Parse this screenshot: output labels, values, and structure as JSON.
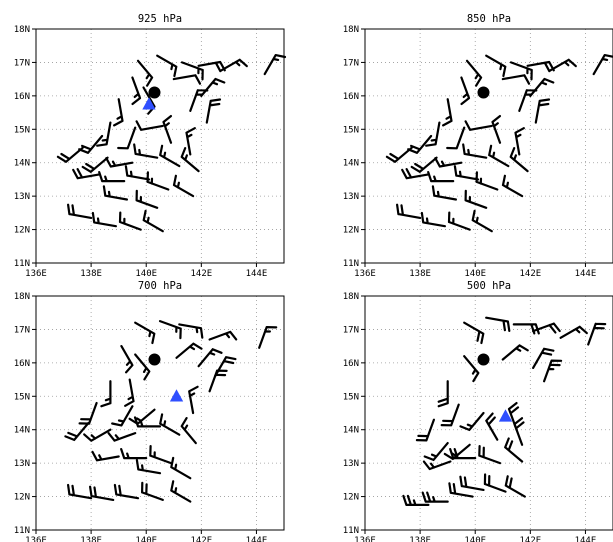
{
  "figure": {
    "panels": [
      {
        "title": "925 hPa",
        "center": {
          "lon": 140.3,
          "lat": 16.1
        },
        "triangle": {
          "lon": 140.1,
          "lat": 15.75
        },
        "barbs": [
          {
            "lon": 139.7,
            "lat": 17.05,
            "dir": 140,
            "spd": 15
          },
          {
            "lon": 140.4,
            "lat": 17.2,
            "dir": 120,
            "spd": 15
          },
          {
            "lon": 141.3,
            "lat": 17.0,
            "dir": 110,
            "spd": 15
          },
          {
            "lon": 141.9,
            "lat": 16.9,
            "dir": 80,
            "spd": 20
          },
          {
            "lon": 142.7,
            "lat": 16.75,
            "dir": 60,
            "spd": 15
          },
          {
            "lon": 144.3,
            "lat": 16.65,
            "dir": 30,
            "spd": 15
          },
          {
            "lon": 139.5,
            "lat": 16.55,
            "dir": 160,
            "spd": 15
          },
          {
            "lon": 141.0,
            "lat": 16.5,
            "dir": 80,
            "spd": 10
          },
          {
            "lon": 142.0,
            "lat": 16.0,
            "dir": 40,
            "spd": 15
          },
          {
            "lon": 139.0,
            "lat": 15.9,
            "dir": 170,
            "spd": 15
          },
          {
            "lon": 139.9,
            "lat": 16.25,
            "dir": 150,
            "spd": 10
          },
          {
            "lon": 141.6,
            "lat": 15.55,
            "dir": 20,
            "spd": 15
          },
          {
            "lon": 142.2,
            "lat": 15.2,
            "dir": 10,
            "spd": 20
          },
          {
            "lon": 138.7,
            "lat": 15.2,
            "dir": 190,
            "spd": 15
          },
          {
            "lon": 139.6,
            "lat": 15.05,
            "dir": 200,
            "spd": 10
          },
          {
            "lon": 140.6,
            "lat": 15.1,
            "dir": 260,
            "spd": 10
          },
          {
            "lon": 140.9,
            "lat": 14.6,
            "dir": 340,
            "spd": 15
          },
          {
            "lon": 141.6,
            "lat": 14.25,
            "dir": 350,
            "spd": 15
          },
          {
            "lon": 138.4,
            "lat": 14.8,
            "dir": 220,
            "spd": 20
          },
          {
            "lon": 137.7,
            "lat": 14.45,
            "dir": 230,
            "spd": 20
          },
          {
            "lon": 138.6,
            "lat": 14.15,
            "dir": 230,
            "spd": 20
          },
          {
            "lon": 139.5,
            "lat": 14.0,
            "dir": 260,
            "spd": 15
          },
          {
            "lon": 140.4,
            "lat": 14.15,
            "dir": 280,
            "spd": 15
          },
          {
            "lon": 141.2,
            "lat": 13.9,
            "dir": 300,
            "spd": 15
          },
          {
            "lon": 141.9,
            "lat": 13.75,
            "dir": 310,
            "spd": 15
          },
          {
            "lon": 138.3,
            "lat": 13.65,
            "dir": 260,
            "spd": 20
          },
          {
            "lon": 139.2,
            "lat": 13.45,
            "dir": 270,
            "spd": 15
          },
          {
            "lon": 140.1,
            "lat": 13.5,
            "dir": 280,
            "spd": 15
          },
          {
            "lon": 140.8,
            "lat": 13.2,
            "dir": 290,
            "spd": 15
          },
          {
            "lon": 141.7,
            "lat": 13.0,
            "dir": 300,
            "spd": 15
          },
          {
            "lon": 139.3,
            "lat": 12.9,
            "dir": 280,
            "spd": 15
          },
          {
            "lon": 140.4,
            "lat": 12.65,
            "dir": 290,
            "spd": 15
          },
          {
            "lon": 138.0,
            "lat": 12.35,
            "dir": 280,
            "spd": 20
          },
          {
            "lon": 138.9,
            "lat": 12.1,
            "dir": 280,
            "spd": 15
          },
          {
            "lon": 139.8,
            "lat": 12.0,
            "dir": 290,
            "spd": 15
          },
          {
            "lon": 140.6,
            "lat": 11.95,
            "dir": 300,
            "spd": 15
          }
        ]
      },
      {
        "title": "850 hPa",
        "center": {
          "lon": 140.3,
          "lat": 16.1
        },
        "triangle": null,
        "barbs": [
          {
            "lon": 139.7,
            "lat": 17.05,
            "dir": 140,
            "spd": 15
          },
          {
            "lon": 140.4,
            "lat": 17.2,
            "dir": 120,
            "spd": 15
          },
          {
            "lon": 141.3,
            "lat": 17.0,
            "dir": 110,
            "spd": 15
          },
          {
            "lon": 141.9,
            "lat": 16.9,
            "dir": 80,
            "spd": 20
          },
          {
            "lon": 142.7,
            "lat": 16.75,
            "dir": 60,
            "spd": 15
          },
          {
            "lon": 144.3,
            "lat": 16.65,
            "dir": 30,
            "spd": 15
          },
          {
            "lon": 139.5,
            "lat": 16.55,
            "dir": 160,
            "spd": 15
          },
          {
            "lon": 141.0,
            "lat": 16.5,
            "dir": 80,
            "spd": 10
          },
          {
            "lon": 142.0,
            "lat": 16.0,
            "dir": 40,
            "spd": 15
          },
          {
            "lon": 139.0,
            "lat": 15.9,
            "dir": 170,
            "spd": 15
          },
          {
            "lon": 141.6,
            "lat": 15.55,
            "dir": 20,
            "spd": 15
          },
          {
            "lon": 142.2,
            "lat": 15.2,
            "dir": 10,
            "spd": 20
          },
          {
            "lon": 138.7,
            "lat": 15.2,
            "dir": 190,
            "spd": 15
          },
          {
            "lon": 139.6,
            "lat": 15.05,
            "dir": 200,
            "spd": 10
          },
          {
            "lon": 140.6,
            "lat": 15.1,
            "dir": 260,
            "spd": 10
          },
          {
            "lon": 140.9,
            "lat": 14.6,
            "dir": 340,
            "spd": 15
          },
          {
            "lon": 141.6,
            "lat": 14.25,
            "dir": 350,
            "spd": 15
          },
          {
            "lon": 138.4,
            "lat": 14.8,
            "dir": 220,
            "spd": 20
          },
          {
            "lon": 137.7,
            "lat": 14.45,
            "dir": 230,
            "spd": 20
          },
          {
            "lon": 138.6,
            "lat": 14.15,
            "dir": 230,
            "spd": 20
          },
          {
            "lon": 139.5,
            "lat": 14.0,
            "dir": 260,
            "spd": 15
          },
          {
            "lon": 140.4,
            "lat": 14.15,
            "dir": 280,
            "spd": 15
          },
          {
            "lon": 141.2,
            "lat": 13.9,
            "dir": 300,
            "spd": 15
          },
          {
            "lon": 141.9,
            "lat": 13.75,
            "dir": 310,
            "spd": 15
          },
          {
            "lon": 138.3,
            "lat": 13.65,
            "dir": 260,
            "spd": 20
          },
          {
            "lon": 139.2,
            "lat": 13.45,
            "dir": 270,
            "spd": 15
          },
          {
            "lon": 140.1,
            "lat": 13.5,
            "dir": 280,
            "spd": 15
          },
          {
            "lon": 140.8,
            "lat": 13.2,
            "dir": 290,
            "spd": 15
          },
          {
            "lon": 141.7,
            "lat": 13.0,
            "dir": 300,
            "spd": 15
          },
          {
            "lon": 139.3,
            "lat": 12.9,
            "dir": 280,
            "spd": 15
          },
          {
            "lon": 140.4,
            "lat": 12.65,
            "dir": 290,
            "spd": 15
          },
          {
            "lon": 138.0,
            "lat": 12.35,
            "dir": 280,
            "spd": 20
          },
          {
            "lon": 138.9,
            "lat": 12.1,
            "dir": 280,
            "spd": 15
          },
          {
            "lon": 139.8,
            "lat": 12.0,
            "dir": 290,
            "spd": 15
          },
          {
            "lon": 140.6,
            "lat": 11.95,
            "dir": 300,
            "spd": 15
          }
        ]
      },
      {
        "title": "700 hPa",
        "center": {
          "lon": 140.3,
          "lat": 16.1
        },
        "triangle": {
          "lon": 141.1,
          "lat": 15.0
        },
        "barbs": [
          {
            "lon": 139.6,
            "lat": 17.2,
            "dir": 120,
            "spd": 15
          },
          {
            "lon": 140.5,
            "lat": 17.25,
            "dir": 110,
            "spd": 15
          },
          {
            "lon": 141.2,
            "lat": 17.15,
            "dir": 100,
            "spd": 15
          },
          {
            "lon": 142.3,
            "lat": 16.7,
            "dir": 70,
            "spd": 15
          },
          {
            "lon": 144.1,
            "lat": 16.45,
            "dir": 20,
            "spd": 15
          },
          {
            "lon": 139.1,
            "lat": 16.5,
            "dir": 150,
            "spd": 15
          },
          {
            "lon": 139.6,
            "lat": 16.25,
            "dir": 140,
            "spd": 15
          },
          {
            "lon": 141.1,
            "lat": 16.15,
            "dir": 50,
            "spd": 15
          },
          {
            "lon": 141.9,
            "lat": 15.9,
            "dir": 40,
            "spd": 15
          },
          {
            "lon": 142.5,
            "lat": 15.6,
            "dir": 30,
            "spd": 20
          },
          {
            "lon": 138.7,
            "lat": 15.45,
            "dir": 180,
            "spd": 15
          },
          {
            "lon": 139.4,
            "lat": 15.5,
            "dir": 170,
            "spd": 15
          },
          {
            "lon": 142.3,
            "lat": 15.15,
            "dir": 20,
            "spd": 20
          },
          {
            "lon": 138.2,
            "lat": 14.8,
            "dir": 200,
            "spd": 20
          },
          {
            "lon": 139.5,
            "lat": 14.7,
            "dir": 210,
            "spd": 15
          },
          {
            "lon": 140.3,
            "lat": 14.6,
            "dir": 230,
            "spd": 15
          },
          {
            "lon": 141.7,
            "lat": 14.5,
            "dir": 350,
            "spd": 15
          },
          {
            "lon": 137.9,
            "lat": 14.2,
            "dir": 220,
            "spd": 20
          },
          {
            "lon": 138.7,
            "lat": 14.0,
            "dir": 240,
            "spd": 15
          },
          {
            "lon": 139.6,
            "lat": 13.9,
            "dir": 250,
            "spd": 15
          },
          {
            "lon": 140.5,
            "lat": 14.1,
            "dir": 270,
            "spd": 15
          },
          {
            "lon": 141.2,
            "lat": 13.85,
            "dir": 300,
            "spd": 15
          },
          {
            "lon": 141.8,
            "lat": 13.6,
            "dir": 320,
            "spd": 15
          },
          {
            "lon": 139.0,
            "lat": 13.2,
            "dir": 260,
            "spd": 15
          },
          {
            "lon": 140.0,
            "lat": 13.15,
            "dir": 270,
            "spd": 15
          },
          {
            "lon": 140.9,
            "lat": 13.0,
            "dir": 290,
            "spd": 15
          },
          {
            "lon": 140.5,
            "lat": 12.7,
            "dir": 280,
            "spd": 15
          },
          {
            "lon": 141.6,
            "lat": 12.55,
            "dir": 300,
            "spd": 15
          },
          {
            "lon": 138.0,
            "lat": 11.95,
            "dir": 280,
            "spd": 20
          },
          {
            "lon": 138.8,
            "lat": 11.9,
            "dir": 280,
            "spd": 20
          },
          {
            "lon": 139.7,
            "lat": 11.95,
            "dir": 280,
            "spd": 20
          },
          {
            "lon": 140.6,
            "lat": 11.9,
            "dir": 290,
            "spd": 20
          },
          {
            "lon": 141.6,
            "lat": 11.85,
            "dir": 300,
            "spd": 15
          }
        ]
      },
      {
        "title": "500 hPa",
        "center": {
          "lon": 140.3,
          "lat": 16.1
        },
        "triangle": {
          "lon": 141.1,
          "lat": 14.4
        },
        "barbs": [
          {
            "lon": 139.6,
            "lat": 17.2,
            "dir": 120,
            "spd": 20
          },
          {
            "lon": 140.4,
            "lat": 17.35,
            "dir": 100,
            "spd": 20
          },
          {
            "lon": 141.4,
            "lat": 17.15,
            "dir": 90,
            "spd": 20
          },
          {
            "lon": 142.1,
            "lat": 16.95,
            "dir": 70,
            "spd": 20
          },
          {
            "lon": 143.1,
            "lat": 16.75,
            "dir": 60,
            "spd": 15
          },
          {
            "lon": 144.1,
            "lat": 16.55,
            "dir": 20,
            "spd": 20
          },
          {
            "lon": 139.6,
            "lat": 16.2,
            "dir": 140,
            "spd": 15
          },
          {
            "lon": 141.0,
            "lat": 16.1,
            "dir": 50,
            "spd": 15
          },
          {
            "lon": 142.1,
            "lat": 15.85,
            "dir": 30,
            "spd": 20
          },
          {
            "lon": 142.5,
            "lat": 15.45,
            "dir": 20,
            "spd": 25
          },
          {
            "lon": 139.0,
            "lat": 15.45,
            "dir": 180,
            "spd": 20
          },
          {
            "lon": 138.5,
            "lat": 14.3,
            "dir": 200,
            "spd": 20
          },
          {
            "lon": 139.4,
            "lat": 14.75,
            "dir": 200,
            "spd": 20
          },
          {
            "lon": 140.3,
            "lat": 14.5,
            "dir": 220,
            "spd": 15
          },
          {
            "lon": 141.5,
            "lat": 14.0,
            "dir": 340,
            "spd": 20
          },
          {
            "lon": 139.0,
            "lat": 13.6,
            "dir": 220,
            "spd": 15
          },
          {
            "lon": 139.8,
            "lat": 13.55,
            "dir": 230,
            "spd": 15
          },
          {
            "lon": 140.8,
            "lat": 13.7,
            "dir": 330,
            "spd": 20
          },
          {
            "lon": 141.7,
            "lat": 13.55,
            "dir": 340,
            "spd": 20
          },
          {
            "lon": 139.1,
            "lat": 13.05,
            "dir": 250,
            "spd": 15
          },
          {
            "lon": 140.0,
            "lat": 13.15,
            "dir": 270,
            "spd": 20
          },
          {
            "lon": 140.9,
            "lat": 13.0,
            "dir": 290,
            "spd": 20
          },
          {
            "lon": 141.7,
            "lat": 13.05,
            "dir": 310,
            "spd": 20
          },
          {
            "lon": 140.3,
            "lat": 12.2,
            "dir": 280,
            "spd": 20
          },
          {
            "lon": 141.1,
            "lat": 12.15,
            "dir": 290,
            "spd": 20
          },
          {
            "lon": 141.8,
            "lat": 12.0,
            "dir": 300,
            "spd": 20
          },
          {
            "lon": 138.3,
            "lat": 11.75,
            "dir": 270,
            "spd": 25
          },
          {
            "lon": 139.0,
            "lat": 11.85,
            "dir": 270,
            "spd": 25
          },
          {
            "lon": 139.9,
            "lat": 12.0,
            "dir": 280,
            "spd": 20
          }
        ]
      }
    ],
    "axes": {
      "xlim": [
        136,
        145
      ],
      "ylim": [
        11,
        18
      ],
      "xticks": [
        136,
        138,
        140,
        142,
        144
      ],
      "yticks": [
        11,
        12,
        13,
        14,
        15,
        16,
        17,
        18
      ],
      "xtick_labels": [
        "136E",
        "138E",
        "140E",
        "142E",
        "144E"
      ],
      "ytick_labels": [
        "11N",
        "12N",
        "13N",
        "14N",
        "15N",
        "16N",
        "17N",
        "18N"
      ],
      "grid": "dotted"
    },
    "colors": {
      "barb": "#000000",
      "center_marker": "#000000",
      "triangle_marker": "#2f4fff",
      "grid": "#9a9a9a",
      "frame": "#000000"
    }
  }
}
